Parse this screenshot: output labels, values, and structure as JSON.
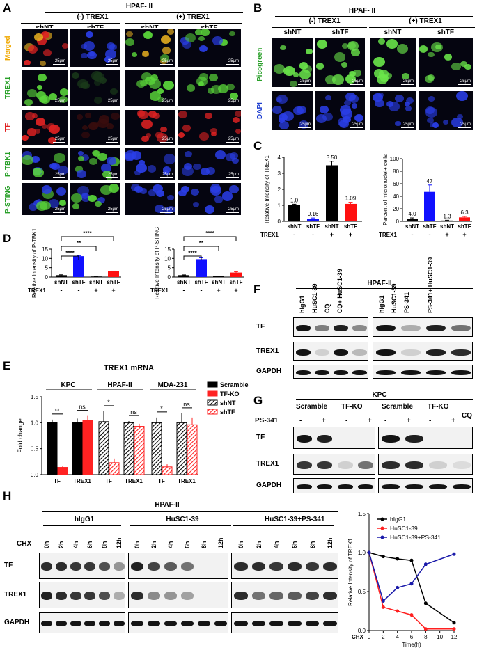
{
  "panel_labels": {
    "A": "A",
    "B": "B",
    "C": "C",
    "D": "D",
    "E": "E",
    "F": "F",
    "G": "G",
    "H": "H"
  },
  "panelA": {
    "cell_line": "HPAF- II",
    "group_neg": "(-) TREX1",
    "group_pos": "(+) TREX1",
    "columns": [
      "shNT",
      "shTF",
      "shNT",
      "shTF"
    ],
    "rows": [
      {
        "label": "Merged",
        "color": "#f0a800"
      },
      {
        "label": "TREX1",
        "color": "#2aa02a"
      },
      {
        "label": "TF",
        "color": "#e02020"
      },
      {
        "label": "P-TBK1",
        "color": "#2aa02a"
      },
      {
        "label": "P-STING",
        "color": "#2aa02a"
      }
    ],
    "scale": "25μm"
  },
  "panelB": {
    "cell_line": "HPAF- II",
    "group_neg": "(-) TREX1",
    "group_pos": "(+) TREX1",
    "columns": [
      "shNT",
      "shTF",
      "shNT",
      "shTF"
    ],
    "rows": [
      {
        "label": "Picogreen",
        "color": "#2aa02a"
      },
      {
        "label": "DAPI",
        "color": "#1f3fd0"
      }
    ],
    "scale": "25μm"
  },
  "chart_data": [
    {
      "id": "C-left",
      "type": "bar",
      "categories": [
        "shNT",
        "shTF",
        "shNT",
        "shTF"
      ],
      "values": [
        1.0,
        0.16,
        3.5,
        1.09
      ],
      "errors": [
        0.07,
        0.05,
        0.25,
        0.1
      ],
      "value_labels": [
        "1.0",
        "0.16",
        "3.50",
        "1.09"
      ],
      "colors": [
        "#000000",
        "#1010ff",
        "#000000",
        "#ff1010"
      ],
      "ylabel": "Relative Intensity of TREX1",
      "ylim": [
        0,
        4
      ],
      "yticks": [
        "0",
        "1",
        "2",
        "3",
        "4"
      ],
      "row_label": "TREX1",
      "signs": [
        "-",
        "-",
        "+",
        "+"
      ]
    },
    {
      "id": "C-right",
      "type": "bar",
      "categories": [
        "shNT",
        "shTF",
        "shNT",
        "shTF"
      ],
      "values": [
        4.0,
        47,
        1.3,
        6.3
      ],
      "errors": [
        1.5,
        11,
        0.5,
        1.5
      ],
      "value_labels": [
        "4.0",
        "47",
        "1.3",
        "6.3"
      ],
      "colors": [
        "#000000",
        "#1010ff",
        "#000000",
        "#ff1010"
      ],
      "ylabel": "Percent of micronuclei+ cells",
      "ylim": [
        0,
        100
      ],
      "yticks": [
        "0",
        "20",
        "40",
        "60",
        "80",
        "100"
      ],
      "row_label": "TREX1",
      "signs": [
        "-",
        "-",
        "+",
        "+"
      ]
    },
    {
      "id": "D-left",
      "type": "bar",
      "categories": [
        "shNT",
        "shTF",
        "shNT",
        "shTF"
      ],
      "values": [
        1.0,
        11.2,
        0.3,
        3.0
      ],
      "errors": [
        0.2,
        0.3,
        0.1,
        0.2
      ],
      "colors": [
        "#000000",
        "#1010ff",
        "#000000",
        "#ff1010"
      ],
      "ylabel": "Relative Intensity of P-TBK1",
      "ylim": [
        0,
        15
      ],
      "yticks": [
        "0",
        "5",
        "10",
        "15"
      ],
      "row_label": "TREX1",
      "signs": [
        "-",
        "-",
        "+",
        "+"
      ],
      "sig": [
        "****",
        "**",
        "****"
      ]
    },
    {
      "id": "D-right",
      "type": "bar",
      "categories": [
        "shNT",
        "shTF",
        "shNT",
        "shTF"
      ],
      "values": [
        1.0,
        9.6,
        0.4,
        2.4
      ],
      "errors": [
        0.15,
        0.7,
        0.1,
        0.5
      ],
      "colors": [
        "#000000",
        "#1010ff",
        "#000000",
        "#ff1010"
      ],
      "ylabel": "Relative Intensity of P-STING",
      "ylim": [
        0,
        15
      ],
      "yticks": [
        "0",
        "5",
        "10",
        "15"
      ],
      "row_label": "TREX1",
      "signs": [
        "-",
        "-",
        "+",
        "+"
      ],
      "sig": [
        "****",
        "**",
        "****"
      ]
    },
    {
      "id": "E",
      "type": "bar",
      "title": "TREX1 mRNA",
      "groups": [
        "KPC",
        "HPAF-II",
        "MDA-231"
      ],
      "categories": [
        "TF",
        "TREX1",
        "TF",
        "TREX1",
        "TF",
        "TREX1"
      ],
      "ylabel": "Fold change",
      "ylim": [
        0,
        1.5
      ],
      "yticks": [
        "0.0",
        "0.5",
        "1.0",
        "1.5"
      ],
      "legend": [
        "Scramble",
        "TF-KO",
        "shNT",
        "shTF"
      ],
      "series": [
        {
          "x": [
            0,
            1
          ],
          "a": [
            1.0,
            1.0
          ],
          "b": [
            0.14,
            1.05
          ],
          "aerr": [
            0.06,
            0.08
          ],
          "berr": [
            0.02,
            0.08
          ],
          "style": "solid"
        },
        {
          "x": [
            2,
            3
          ],
          "a": [
            1.02,
            1.0
          ],
          "b": [
            0.23,
            0.93
          ],
          "aerr": [
            0.2,
            0.03
          ],
          "berr": [
            0.08,
            0.05
          ],
          "style": "hatch"
        },
        {
          "x": [
            4,
            5
          ],
          "a": [
            1.0,
            1.0
          ],
          "b": [
            0.15,
            0.96
          ],
          "aerr": [
            0.1,
            0.18
          ],
          "berr": [
            0.05,
            0.14
          ],
          "style": "hatch"
        }
      ],
      "sig": [
        "**",
        "ns",
        "*",
        "ns",
        "*",
        "ns"
      ]
    },
    {
      "id": "H-right",
      "type": "line",
      "x": [
        0,
        2,
        4,
        6,
        8,
        12
      ],
      "xlabel": "Time(h)",
      "xprefix": "CHX",
      "ylabel": "Relative Intensity of TREX1",
      "ylim": [
        0,
        1.5
      ],
      "yticks": [
        "0.0",
        "0.5",
        "1.0",
        "1.5"
      ],
      "xticks": [
        "0",
        "2",
        "4",
        "6",
        "8",
        "10",
        "12"
      ],
      "series": [
        {
          "name": "hIgG1",
          "color": "#000000",
          "values": [
            1.0,
            0.95,
            0.92,
            0.9,
            0.35,
            0.1
          ]
        },
        {
          "name": "HuSC1-39",
          "color": "#ff2020",
          "values": [
            1.0,
            0.3,
            0.25,
            0.2,
            0.02,
            0.02
          ]
        },
        {
          "name": "HuSC1-39+PS-341",
          "color": "#1a1aaa",
          "values": [
            1.0,
            0.38,
            0.55,
            0.6,
            0.85,
            0.98
          ]
        }
      ]
    }
  ],
  "panelF": {
    "title": "HPAF-II",
    "lanes_left": [
      "hIgG1",
      "HuSC1-39",
      "CQ",
      "CQ+ HuSC1-39"
    ],
    "lanes_right": [
      "hIgG1",
      "HuSC1-39",
      "PS-341",
      "PS-341+ HuSC1-39"
    ],
    "rows": [
      "TF",
      "TREX1",
      "GAPDH"
    ]
  },
  "panelG": {
    "title": "KPC",
    "groups": [
      "Scramble",
      "TF-KO",
      "Scramble",
      "TF-KO"
    ],
    "treat": "PS-341",
    "cq": "CQ",
    "signs": [
      "-",
      "+",
      "-",
      "+",
      "-",
      "+",
      "-",
      "+"
    ],
    "rows": [
      "TF",
      "TREX1",
      "GAPDH"
    ]
  },
  "panelH": {
    "title": "HPAF-II",
    "groups": [
      "hIgG1",
      "HuSC1-39",
      "HuSC1-39+PS-341"
    ],
    "chx": "CHX",
    "times": [
      "0h",
      "2h",
      "4h",
      "6h",
      "8h",
      "12h"
    ],
    "rows": [
      "TF",
      "TREX1",
      "GAPDH"
    ]
  }
}
